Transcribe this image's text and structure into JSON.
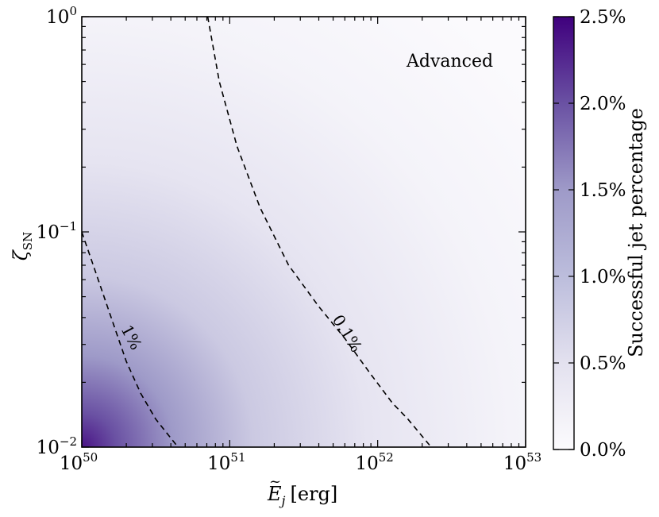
{
  "chart_data": {
    "type": "heatmap",
    "panel_annotation": "Advanced",
    "xlabel_base": "E",
    "xlabel_sub": "j",
    "xlabel_unit": "[erg]",
    "ylabel_base": "ζ",
    "ylabel_sub": "SN",
    "xscale": "log",
    "yscale": "log",
    "xlim": [
      1e+50,
      1e+53
    ],
    "ylim": [
      0.01,
      1
    ],
    "x_ticks": [
      {
        "value": 1e+50,
        "base": "10",
        "exp": "50"
      },
      {
        "value": 1e+51,
        "base": "10",
        "exp": "51"
      },
      {
        "value": 1e+52,
        "base": "10",
        "exp": "52"
      },
      {
        "value": 1e+53,
        "base": "10",
        "exp": "53"
      }
    ],
    "y_ticks": [
      {
        "value": 0.01,
        "base": "10",
        "exp": "−2"
      },
      {
        "value": 0.1,
        "base": "10",
        "exp": "−1"
      },
      {
        "value": 1,
        "base": "10",
        "exp": "0"
      }
    ],
    "colorbar": {
      "label": "Successful jet percentage",
      "range": [
        0,
        2.5
      ],
      "ticks": [
        "0.0%",
        "0.5%",
        "1.0%",
        "1.5%",
        "2.0%",
        "2.5%"
      ],
      "tick_values": [
        0,
        0.5,
        1.0,
        1.5,
        2.0,
        2.5
      ],
      "colormap": "Purples",
      "color_low": "#fcfbfd",
      "color_high": "#3f007d"
    },
    "contours": [
      {
        "level_label": "1%",
        "points": [
          [
            1e+50,
            0.1
          ],
          [
            1.26e+50,
            0.063
          ],
          [
            1.58e+50,
            0.04
          ],
          [
            2e+50,
            0.025
          ],
          [
            2.5e+50,
            0.0178
          ],
          [
            3.16e+50,
            0.0135
          ],
          [
            4.47e+50,
            0.01
          ]
        ]
      },
      {
        "level_label": "0.1%",
        "points": [
          [
            7.1e+50,
            1.0
          ],
          [
            8.5e+50,
            0.5
          ],
          [
            1.12e+51,
            0.25
          ],
          [
            1.6e+51,
            0.13
          ],
          [
            2.5e+51,
            0.07
          ],
          [
            4e+51,
            0.045
          ],
          [
            6e+51,
            0.032
          ],
          [
            8.9e+51,
            0.022
          ],
          [
            1.26e+52,
            0.016
          ],
          [
            1.6e+52,
            0.0135
          ],
          [
            2.3e+52,
            0.01
          ]
        ]
      }
    ]
  }
}
